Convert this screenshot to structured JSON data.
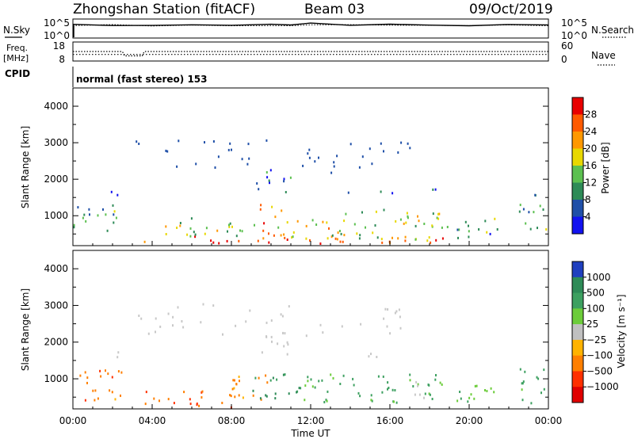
{
  "header": {
    "station": "Zhongshan Station (fitACF)",
    "beam": "Beam 03",
    "date": "09/Oct/2019"
  },
  "noise_panel": {
    "left_label": "N.Sky",
    "right_label": "N.Search",
    "left_ticks": [
      "10^5",
      "10^0"
    ],
    "right_ticks": [
      "10^5",
      "10^0"
    ]
  },
  "freq_panel": {
    "left_label_1": "Freq.",
    "left_label_2": "[MHz]",
    "right_label": "Nave",
    "left_ticks": [
      "18",
      "8"
    ],
    "right_ticks": [
      "60",
      "0"
    ]
  },
  "cpid": {
    "label": "CPID",
    "mode": "normal (fast stereo) 153"
  },
  "x_axis": {
    "title": "Time UT",
    "ticks": [
      "00:00",
      "04:00",
      "08:00",
      "12:00",
      "16:00",
      "20:00",
      "00:00"
    ]
  },
  "power_panel": {
    "ylabel": "Slant Range [km]",
    "yticks": [
      "1000",
      "2000",
      "3000",
      "4000"
    ],
    "colorbar_title": "Power [dB]",
    "colorbar_ticks": [
      "4",
      "8",
      "12",
      "16",
      "20",
      "24",
      "28"
    ]
  },
  "velocity_panel": {
    "ylabel": "Slant Range [km]",
    "yticks": [
      "1000",
      "2000",
      "3000",
      "4000"
    ],
    "colorbar_title": "Velocity [m s⁻¹]",
    "colorbar_ticks": [
      "1000",
      "500",
      "100",
      "25",
      "−25",
      "−100",
      "−500",
      "−1000"
    ]
  },
  "chart_data": [
    {
      "type": "heatmap",
      "name": "power",
      "xlabel": "Time UT",
      "ylabel": "Slant Range [km]",
      "xlim_hours": [
        0,
        24
      ],
      "ylim_km": [
        180,
        4500
      ],
      "colorbar_range_db": [
        0,
        32
      ],
      "colors": [
        "#1212f0",
        "#1f4fa8",
        "#2e8b57",
        "#5cc050",
        "#e8d800",
        "#ff9800",
        "#ff5a00",
        "#e80000"
      ],
      "regions": [
        {
          "t_start": 3.5,
          "t_end": 18.7,
          "r_start": 180,
          "r_end": 420,
          "value": 26
        },
        {
          "t_start": 0.0,
          "t_end": 2.5,
          "r_start": 450,
          "r_end": 1250,
          "value": 10
        },
        {
          "t_start": 4.0,
          "t_end": 9.5,
          "r_start": 400,
          "r_end": 900,
          "value": 14
        },
        {
          "t_start": 9.0,
          "t_end": 10.5,
          "r_start": 400,
          "r_end": 1300,
          "value": 22
        },
        {
          "t_start": 10.5,
          "t_end": 13.0,
          "r_start": 300,
          "r_end": 900,
          "value": 20
        },
        {
          "t_start": 13.0,
          "t_end": 18.5,
          "r_start": 300,
          "r_end": 1200,
          "value": 16
        },
        {
          "t_start": 18.5,
          "t_end": 21.5,
          "r_start": 300,
          "r_end": 900,
          "value": 10
        },
        {
          "t_start": 22.5,
          "t_end": 24.0,
          "r_start": 400,
          "r_end": 1300,
          "value": 12
        },
        {
          "t_start": 0.8,
          "t_end": 2.3,
          "r_start": 1500,
          "r_end": 1700,
          "value": 10
        },
        {
          "t_start": 9.2,
          "t_end": 11.0,
          "r_start": 1600,
          "r_end": 2300,
          "value": 8
        },
        {
          "t_start": 13.8,
          "t_end": 16.5,
          "r_start": 1550,
          "r_end": 1700,
          "value": 8
        },
        {
          "t_start": 17.0,
          "t_end": 19.0,
          "r_start": 1600,
          "r_end": 1700,
          "value": 6
        },
        {
          "t_start": 22.5,
          "t_end": 23.5,
          "r_start": 1500,
          "r_end": 1750,
          "value": 6
        }
      ]
    },
    {
      "type": "heatmap",
      "name": "velocity",
      "xlabel": "Time UT",
      "ylabel": "Slant Range [km]",
      "xlim_hours": [
        0,
        24
      ],
      "ylim_km": [
        180,
        4500
      ],
      "colorbar_levels": [
        1000,
        500,
        100,
        25,
        -25,
        -100,
        -500,
        -1000
      ],
      "colors": [
        "#1f3fbf",
        "#2e8b57",
        "#3da060",
        "#6ccc3a",
        "#c0c0c0",
        "#ffb300",
        "#ff7f00",
        "#ff3000",
        "#e00000"
      ],
      "ground_scatter_color": "#c8c8c8",
      "regions": [
        {
          "t_start": 0.0,
          "t_end": 2.5,
          "r_start": 300,
          "r_end": 1250,
          "value": -300
        },
        {
          "t_start": 3.5,
          "t_end": 8.5,
          "r_start": 180,
          "r_end": 650,
          "value": -400
        },
        {
          "t_start": 8.0,
          "t_end": 10.0,
          "r_start": 400,
          "r_end": 1300,
          "value": -200
        },
        {
          "t_start": 9.0,
          "t_end": 11.5,
          "r_start": 400,
          "r_end": 1200,
          "value": 600
        },
        {
          "t_start": 11.5,
          "t_end": 18.5,
          "r_start": 300,
          "r_end": 1100,
          "value": 150
        },
        {
          "t_start": 18.5,
          "t_end": 21.5,
          "r_start": 300,
          "r_end": 900,
          "value": 80
        },
        {
          "t_start": 22.5,
          "t_end": 24.0,
          "r_start": 300,
          "r_end": 1300,
          "value": 200
        },
        {
          "t_start": 17.0,
          "t_end": 18.0,
          "r_start": 400,
          "r_end": 1000,
          "value": 0
        },
        {
          "t_start": 0.8,
          "t_end": 2.3,
          "r_start": 1500,
          "r_end": 1700,
          "value": 0
        },
        {
          "t_start": 9.2,
          "t_end": 11.0,
          "r_start": 1600,
          "r_end": 2300,
          "value": 0
        },
        {
          "t_start": 13.8,
          "t_end": 16.5,
          "r_start": 1550,
          "r_end": 1700,
          "value": 0
        }
      ]
    },
    {
      "type": "line",
      "name": "noise",
      "xlim_hours": [
        0,
        24
      ],
      "yscale": "log",
      "ylim": [
        1,
        100000
      ],
      "series": [
        {
          "name": "N.Sky",
          "style": "solid",
          "x": [
            0,
            2,
            4,
            6,
            8,
            10,
            11,
            12,
            14,
            16,
            18,
            20,
            22,
            24
          ],
          "y": [
            3200,
            3500,
            3300,
            3000,
            3100,
            3200,
            3400,
            9000,
            4000,
            3300,
            3500,
            3300,
            3600,
            3200
          ]
        },
        {
          "name": "N.Search",
          "style": "dotted",
          "x": [
            0,
            2,
            4,
            6,
            8,
            10,
            11,
            12,
            14,
            16,
            18,
            20,
            22,
            24
          ],
          "y": [
            2500,
            2800,
            2600,
            2400,
            2500,
            2600,
            2800,
            6000,
            3000,
            2600,
            2800,
            2600,
            2900,
            2500
          ]
        }
      ]
    },
    {
      "type": "line",
      "name": "frequency",
      "xlim_hours": [
        0,
        24
      ],
      "series": [
        {
          "name": "Freq.",
          "style": "dotted",
          "ylim_mhz": [
            8,
            18
          ],
          "x": [
            0,
            2.5,
            2.6,
            3.5,
            3.6,
            24
          ],
          "y": [
            13,
            13,
            10.5,
            10.5,
            13,
            13
          ]
        },
        {
          "name": "Nave",
          "style": "dotted",
          "ylim": [
            0,
            60
          ],
          "x": [
            0,
            24
          ],
          "y": [
            20,
            20
          ]
        }
      ]
    }
  ]
}
